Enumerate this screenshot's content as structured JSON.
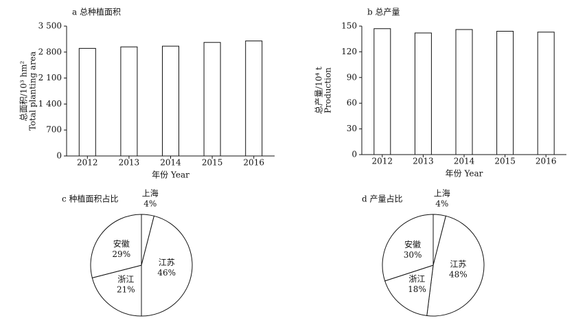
{
  "chart_data": [
    {
      "type": "bar",
      "title": "a 总种植面积",
      "xlabel": "年份 Year",
      "ylabel": [
        "总面积/10³ hm²",
        "Total planting area"
      ],
      "categories": [
        "2012",
        "2013",
        "2014",
        "2015",
        "2016"
      ],
      "values": [
        2900,
        2940,
        2960,
        3060,
        3100
      ],
      "color": "#ffffff",
      "ylim": [
        0,
        3500
      ],
      "yticks": [
        0,
        700,
        {
          "value": 1400,
          "label": "1 400"
        },
        {
          "value": 2100,
          "label": "2 100"
        },
        {
          "value": 2800,
          "label": "2 800"
        },
        {
          "value": 3500,
          "label": "3 500"
        }
      ]
    },
    {
      "type": "bar",
      "title": "b 总产量",
      "xlabel": "年份 Year",
      "ylabel": [
        "总产量/10⁴ t",
        "Production"
      ],
      "categories": [
        "2012",
        "2013",
        "2014",
        "2015",
        "2016"
      ],
      "values": [
        147,
        142,
        146,
        144,
        143
      ],
      "color": "#ffffff",
      "ylim": [
        0,
        150
      ],
      "yticks": [
        0,
        30,
        60,
        90,
        120,
        150
      ]
    },
    {
      "type": "pie",
      "title": "c 种植面积占比",
      "categories": [
        "上海",
        "江苏",
        "浙江",
        "安徽"
      ],
      "values": [
        4,
        46,
        21,
        29
      ],
      "value_labels": [
        "4%",
        "46%",
        "21%",
        "29%"
      ],
      "color": "#ffffff"
    },
    {
      "type": "pie",
      "title": "d 产量占比",
      "categories": [
        "上海",
        "江苏",
        "浙江",
        "安徽"
      ],
      "values": [
        4,
        48,
        18,
        30
      ],
      "value_labels": [
        "4%",
        "48%",
        "18%",
        "30%"
      ],
      "color": "#ffffff"
    }
  ]
}
